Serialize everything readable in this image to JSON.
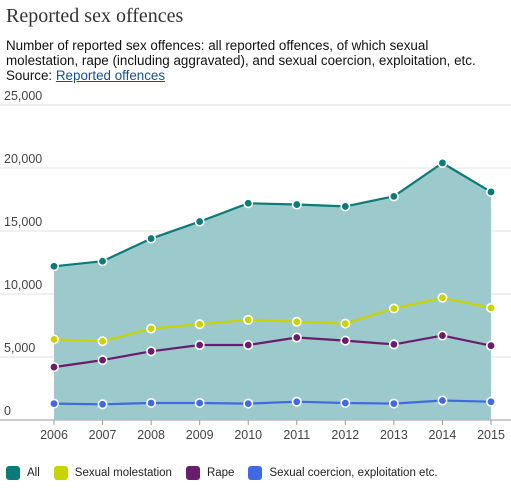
{
  "page": {
    "title": "Reported sex offences",
    "subtitle": "Number of reported sex offences: all reported offences, of which sexual molestation, rape (including aggravated), and sexual coercion, exploitation, etc. Source:",
    "source_link": "Reported offences"
  },
  "colors": {
    "all": "#0d7a7a",
    "all_fill": "#9ccacc",
    "molestation": "#c8d400",
    "rape": "#6b1d6d",
    "coercion": "#4169e1"
  },
  "chart_data": {
    "type": "line",
    "title": "Reported sex offences",
    "x": [
      "2006",
      "2007",
      "2008",
      "2009",
      "2010",
      "2011",
      "2012",
      "2013",
      "2014",
      "2015"
    ],
    "ylim": [
      0,
      25000
    ],
    "y_ticks": [
      "0",
      "5,000",
      "10,000",
      "15,000",
      "20,000",
      "25,000"
    ],
    "y_tick_values": [
      0,
      5000,
      10000,
      15000,
      20000,
      25000
    ],
    "grid": true,
    "legend_position": "bottom-left",
    "series": [
      {
        "key": "all",
        "name": "All",
        "area": true,
        "values": [
          12200,
          12600,
          14400,
          15750,
          17200,
          17100,
          16950,
          17750,
          20400,
          18100
        ]
      },
      {
        "key": "molestation",
        "name": "Sexual molestation",
        "values": [
          6400,
          6250,
          7250,
          7600,
          7950,
          7800,
          7650,
          8850,
          9700,
          8900
        ]
      },
      {
        "key": "rape",
        "name": "Rape",
        "values": [
          4200,
          4750,
          5450,
          5950,
          5950,
          6550,
          6300,
          6000,
          6700,
          5900
        ]
      },
      {
        "key": "coercion",
        "name": "Sexual coercion, exploitation etc.",
        "values": [
          1300,
          1250,
          1350,
          1350,
          1300,
          1450,
          1350,
          1300,
          1550,
          1450
        ]
      }
    ]
  }
}
